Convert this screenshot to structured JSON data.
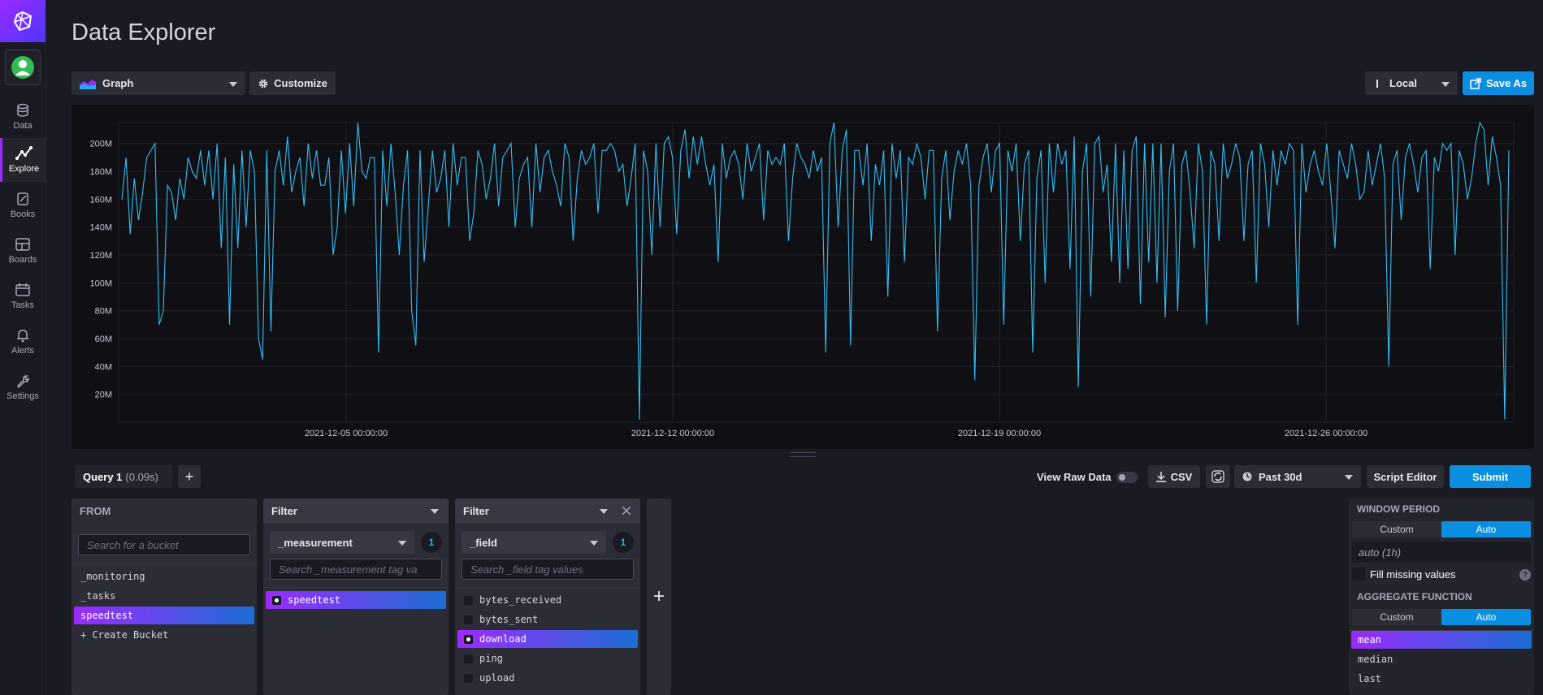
{
  "page": {
    "title": "Data Explorer"
  },
  "nav": {
    "items": [
      {
        "label": "Data",
        "icon": "database-icon"
      },
      {
        "label": "Explore",
        "icon": "graph-icon"
      },
      {
        "label": "Books",
        "icon": "notebook-icon"
      },
      {
        "label": "Boards",
        "icon": "dashboard-icon"
      },
      {
        "label": "Tasks",
        "icon": "calendar-icon"
      },
      {
        "label": "Alerts",
        "icon": "bell-icon"
      },
      {
        "label": "Settings",
        "icon": "wrench-icon"
      }
    ]
  },
  "toolbar": {
    "vis_type": "Graph",
    "customize_label": "Customize",
    "timezone": "Local",
    "save_as_label": "Save As"
  },
  "chart_data": {
    "type": "line",
    "ylim": [
      0,
      215000000
    ],
    "yticks": [
      "20M",
      "40M",
      "60M",
      "80M",
      "100M",
      "120M",
      "140M",
      "160M",
      "180M",
      "200M"
    ],
    "xticks": [
      "2021-12-05 00:00:00",
      "2021-12-12 00:00:00",
      "2021-12-19 00:00:00",
      "2021-12-26 00:00:00"
    ],
    "series": [
      {
        "color": "#31c0f6",
        "values": [
          160,
          190,
          135,
          175,
          145,
          165,
          190,
          195,
          200,
          70,
          80,
          170,
          165,
          145,
          175,
          160,
          190,
          180,
          175,
          195,
          170,
          195,
          160,
          200,
          125,
          190,
          70,
          185,
          125,
          195,
          140,
          195,
          180,
          60,
          45,
          195,
          65,
          180,
          195,
          170,
          205,
          165,
          180,
          190,
          155,
          200,
          175,
          195,
          170,
          170,
          190,
          120,
          140,
          195,
          150,
          200,
          155,
          215,
          180,
          175,
          190,
          190,
          50,
          195,
          155,
          200,
          165,
          120,
          170,
          195,
          80,
          55,
          195,
          115,
          155,
          195,
          165,
          175,
          195,
          140,
          200,
          170,
          190,
          190,
          130,
          150,
          195,
          185,
          160,
          175,
          200,
          155,
          190,
          195,
          200,
          140,
          175,
          185,
          190,
          140,
          200,
          165,
          190,
          195,
          180,
          170,
          155,
          200,
          190,
          130,
          175,
          195,
          185,
          190,
          200,
          150,
          195,
          195,
          200,
          195,
          180,
          185,
          155,
          175,
          200,
          2,
          195,
          180,
          120,
          200,
          140,
          200,
          205,
          190,
          135,
          195,
          210,
          175,
          205,
          185,
          205,
          185,
          170,
          185,
          115,
          200,
          175,
          190,
          195,
          185,
          160,
          200,
          180,
          190,
          200,
          145,
          195,
          185,
          190,
          185,
          200,
          130,
          175,
          200,
          190,
          185,
          175,
          195,
          180,
          190,
          50,
          200,
          215,
          140,
          195,
          210,
          55,
          195,
          195,
          170,
          200,
          130,
          185,
          170,
          195,
          90,
          200,
          175,
          195,
          115,
          190,
          185,
          200,
          190,
          160,
          195,
          195,
          65,
          175,
          195,
          145,
          180,
          195,
          185,
          200,
          170,
          30,
          170,
          190,
          200,
          165,
          195,
          200,
          70,
          195,
          180,
          200,
          130,
          185,
          195,
          50,
          175,
          195,
          100,
          200,
          165,
          200,
          185,
          195,
          110,
          205,
          25,
          180,
          200,
          90,
          200,
          205,
          165,
          185,
          115,
          200,
          100,
          195,
          110,
          195,
          205,
          85,
          200,
          115,
          200,
          100,
          200,
          75,
          180,
          200,
          80,
          185,
          195,
          165,
          125,
          200,
          180,
          70,
          195,
          185,
          130,
          200,
          175,
          185,
          200,
          190,
          130,
          185,
          195,
          100,
          200,
          185,
          140,
          195,
          170,
          195,
          185,
          200,
          195,
          70,
          200,
          165,
          185,
          195,
          180,
          170,
          200,
          165,
          125,
          195,
          185,
          175,
          200,
          185,
          160,
          165,
          195,
          170,
          185,
          200,
          175,
          40,
          185,
          195,
          145,
          190,
          200,
          185,
          165,
          190,
          195,
          110,
          190,
          180,
          200,
          195,
          200,
          120,
          195,
          185,
          160,
          175,
          200,
          215,
          210,
          170,
          205,
          190,
          170,
          2,
          195
        ]
      }
    ]
  },
  "query": {
    "tab_name": "Query 1",
    "tab_time": "(0.09s)",
    "view_raw_label": "View Raw Data",
    "csv_label": "CSV",
    "time_range": "Past 30d",
    "script_editor_label": "Script Editor",
    "submit_label": "Submit"
  },
  "from": {
    "header": "FROM",
    "search_placeholder": "Search for a bucket",
    "buckets": [
      "_monitoring",
      "_tasks",
      "speedtest",
      "+ Create Bucket"
    ],
    "selected": "speedtest"
  },
  "filter1": {
    "header": "Filter",
    "key": "_measurement",
    "count": "1",
    "search_placeholder": "Search _measurement tag va",
    "values": [
      "speedtest"
    ]
  },
  "filter2": {
    "header": "Filter",
    "key": "_field",
    "count": "1",
    "search_placeholder": "Search _field tag values",
    "values": [
      "bytes_received",
      "bytes_sent",
      "download",
      "ping",
      "upload"
    ],
    "selected": "download"
  },
  "right_panel": {
    "window_period_label": "WINDOW PERIOD",
    "custom_label": "Custom",
    "auto_label": "Auto",
    "window_value": "auto (1h)",
    "fill_missing_label": "Fill missing values",
    "aggregate_label": "AGGREGATE FUNCTION",
    "functions": [
      "mean",
      "median",
      "last"
    ]
  }
}
